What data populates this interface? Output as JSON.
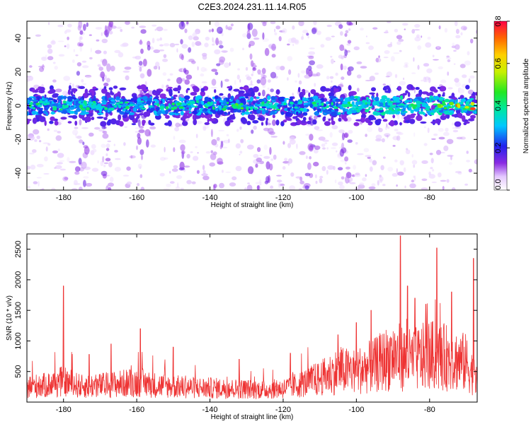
{
  "title": "C2E3.2024.231.11.14.R05",
  "chart_data": [
    {
      "type": "heatmap",
      "xlabel": "Height of straight line (km)",
      "ylabel": "Frequency (Hz)",
      "xlim": [
        -190,
        -67
      ],
      "ylim": [
        -50,
        50
      ],
      "xticks": [
        -180,
        -160,
        -140,
        -120,
        -100,
        -80
      ],
      "yticks": [
        -40,
        -20,
        0,
        20,
        40
      ],
      "colorbar": {
        "label": "Normalized spectral amplitude",
        "range": [
          0,
          0.8
        ],
        "ticks": [
          "0.0",
          "0.2",
          "0.4",
          "0.6",
          "0.8"
        ]
      },
      "band_center_hz": 0,
      "band_halfwidth_hz": 5,
      "hotspots": [
        {
          "x": -172,
          "value": 0.35
        },
        {
          "x": -131,
          "value": 0.5
        },
        {
          "x": -97,
          "value": 0.4
        },
        {
          "x": -84,
          "value": 0.45
        },
        {
          "x": -76,
          "value": 0.55
        },
        {
          "x": -70,
          "value": 0.75
        }
      ]
    },
    {
      "type": "line",
      "xlabel": "Height of straight line (km)",
      "ylabel": "SNR (10 * v/v)",
      "xlim": [
        -190,
        -67
      ],
      "ylim": [
        0,
        2750
      ],
      "xticks": [
        -180,
        -160,
        -140,
        -120,
        -100,
        -80
      ],
      "yticks": [
        500,
        1000,
        1500,
        2000,
        2500
      ],
      "color": "#ee3333",
      "series": [
        {
          "x": [
            -190,
            -185,
            -180,
            -175,
            -170,
            -165,
            -160,
            -155,
            -150,
            -145,
            -140,
            -135,
            -130,
            -125,
            -120,
            -115,
            -110,
            -105,
            -100,
            -95,
            -90,
            -85,
            -80,
            -75,
            -70,
            -67
          ],
          "values": [
            300,
            320,
            400,
            300,
            320,
            350,
            380,
            330,
            300,
            280,
            270,
            260,
            250,
            240,
            260,
            350,
            450,
            600,
            600,
            700,
            900,
            800,
            900,
            850,
            750,
            400
          ]
        }
      ],
      "peaks": [
        {
          "x": -180,
          "value": 1900
        },
        {
          "x": -173,
          "value": 780
        },
        {
          "x": -159,
          "value": 1200
        },
        {
          "x": -167,
          "value": 950
        },
        {
          "x": -150,
          "value": 900
        },
        {
          "x": -132,
          "value": 700
        },
        {
          "x": -118,
          "value": 800
        },
        {
          "x": -105,
          "value": 1100
        },
        {
          "x": -100,
          "value": 1300
        },
        {
          "x": -96,
          "value": 1500
        },
        {
          "x": -88,
          "value": 2720
        },
        {
          "x": -86,
          "value": 1900
        },
        {
          "x": -84,
          "value": 1700
        },
        {
          "x": -81,
          "value": 1600
        },
        {
          "x": -78,
          "value": 2520
        },
        {
          "x": -74,
          "value": 1800
        },
        {
          "x": -68,
          "value": 2350
        }
      ]
    }
  ]
}
